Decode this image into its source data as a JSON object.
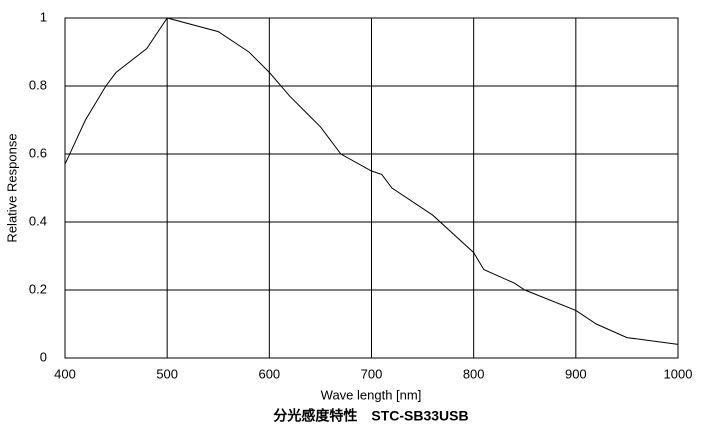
{
  "chart_data": {
    "type": "line",
    "title": "分光感度特性　STC-SB33USB",
    "x_label": "Wave length [nm]",
    "y_label": "Relative Response",
    "x": [
      400,
      420,
      440,
      450,
      480,
      500,
      550,
      580,
      600,
      620,
      640,
      650,
      670,
      700,
      710,
      720,
      760,
      800,
      810,
      840,
      850,
      900,
      920,
      950,
      1000
    ],
    "series": [
      {
        "name": "Relative Response",
        "color": "#000000",
        "values": [
          0.57,
          0.7,
          0.8,
          0.84,
          0.91,
          1.0,
          0.96,
          0.9,
          0.84,
          0.77,
          0.71,
          0.68,
          0.6,
          0.55,
          0.54,
          0.5,
          0.42,
          0.31,
          0.26,
          0.22,
          0.2,
          0.14,
          0.1,
          0.06,
          0.04
        ]
      }
    ],
    "xlim": [
      400,
      1000
    ],
    "xticks": [
      400,
      500,
      600,
      700,
      800,
      900,
      1000
    ],
    "ylim": [
      0,
      1
    ],
    "yticks": [
      0,
      0.2,
      0.4,
      0.6,
      0.8,
      1
    ],
    "grid": true
  }
}
